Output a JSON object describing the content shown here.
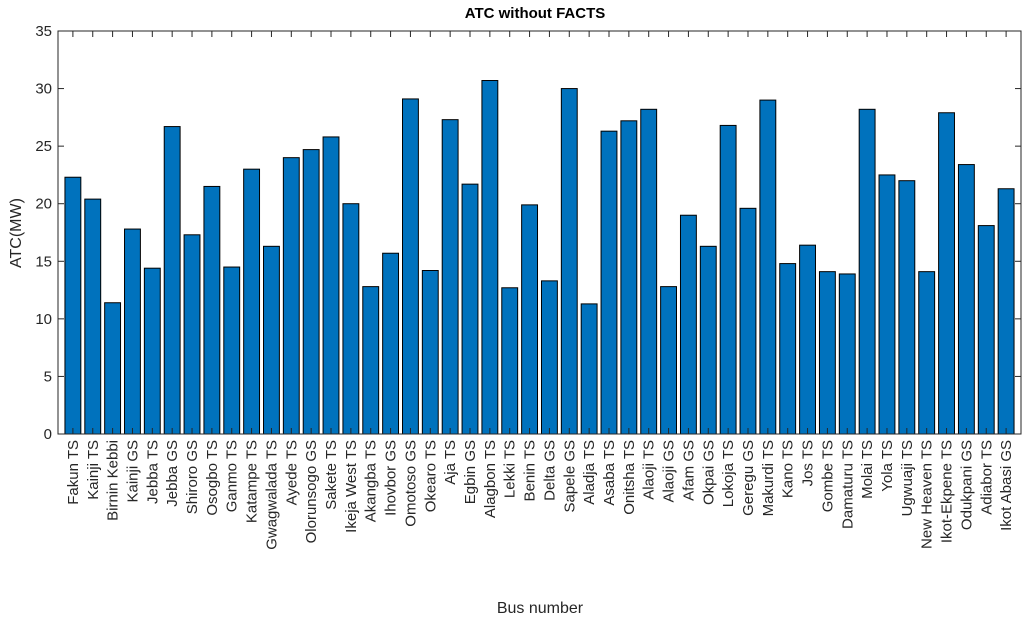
{
  "chart_data": {
    "type": "bar",
    "title": "ATC without FACTS",
    "xlabel": "Bus number",
    "ylabel": "ATC(MW)",
    "ylim": [
      0,
      35
    ],
    "yticks": [
      0,
      5,
      10,
      15,
      20,
      25,
      30,
      35
    ],
    "grid": false,
    "bar_color": "#0072BD",
    "categories": [
      "Fakun TS",
      "Kainji TS",
      "Birnin Kebbi",
      "Kainji GS",
      "Jebba TS",
      "Jebba GS",
      "Shiroro GS",
      "Osogbo TS",
      "Ganmo TS",
      "Katampe TS",
      "Gwagwalada TS",
      "Ayede TS",
      "Olorunsogo GS",
      "Sakete TS",
      "Ikeja West TS",
      "Akangba TS",
      "Ihovbor GS",
      "Omotoso GS",
      "Okearo TS",
      "Aja TS",
      "Egbin GS",
      "Alagbon TS",
      "Lekki TS",
      "Benin TS",
      "Delta GS",
      "Sapele GS",
      "Aladja TS",
      "Asaba TS",
      "Onitsha TS",
      "Alaoji TS",
      "Alaoji GS",
      "Afam GS",
      "Okpai GS",
      "Lokoja TS",
      "Geregu GS",
      "Makurdi TS",
      "Kano TS",
      "Jos TS",
      "Gombe TS",
      "Damaturu TS",
      "Molai TS",
      "Yola TS",
      "Ugwuaji TS",
      "New Heaven TS",
      "Ikot-Ekpene TS",
      "Odukpani GS",
      "Adiabor TS",
      "Ikot Abasi GS"
    ],
    "values": [
      22.3,
      20.4,
      11.4,
      17.8,
      14.4,
      26.7,
      17.3,
      21.5,
      14.5,
      23.0,
      16.3,
      24.0,
      24.7,
      25.8,
      20.0,
      12.8,
      15.7,
      29.1,
      14.2,
      27.3,
      21.7,
      30.7,
      12.7,
      19.9,
      13.3,
      30.0,
      11.3,
      26.3,
      27.2,
      28.2,
      12.8,
      19.0,
      16.3,
      26.8,
      19.6,
      29.0,
      14.8,
      16.4,
      14.1,
      13.9,
      28.2,
      22.5,
      22.0,
      14.1,
      27.9,
      23.4,
      18.1,
      21.3
    ]
  }
}
